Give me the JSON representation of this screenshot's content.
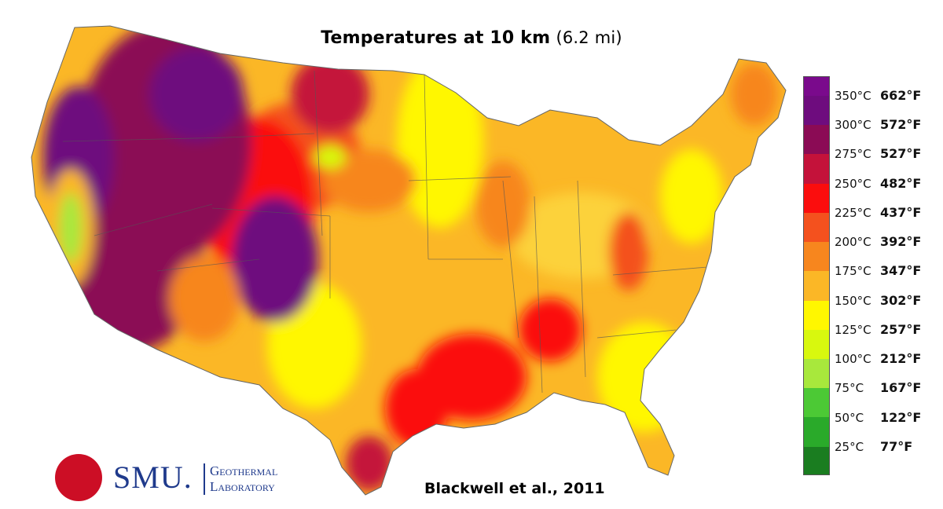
{
  "title": {
    "main": "Temperatures at 10 km",
    "sub": "(6.2 mi)"
  },
  "credit": "Blackwell et al., 2011",
  "logo": {
    "wordmark": "SMU.",
    "line1": "Geothermal",
    "line2": "Laboratory"
  },
  "legend": [
    {
      "c": "350°C",
      "f": "662°F",
      "color": "#6e0c7e"
    },
    {
      "c": "300°C",
      "f": "572°F",
      "color": "#8b0b55"
    },
    {
      "c": "275°C",
      "f": "527°F",
      "color": "#c4123a"
    },
    {
      "c": "250°C",
      "f": "482°F",
      "color": "#fb0d0d"
    },
    {
      "c": "225°C",
      "f": "437°F",
      "color": "#f4511e"
    },
    {
      "c": "200°C",
      "f": "392°F",
      "color": "#f7861e"
    },
    {
      "c": "175°C",
      "f": "347°F",
      "color": "#fbb726"
    },
    {
      "c": "150°C",
      "f": "302°F",
      "color": "#fff700"
    },
    {
      "c": "125°C",
      "f": "257°F",
      "color": "#d8f80e"
    },
    {
      "c": "100°C",
      "f": "212°F",
      "color": "#a8e83c"
    },
    {
      "c": "75°C",
      "f": "167°F",
      "color": "#4cc935"
    },
    {
      "c": "50°C",
      "f": "122°F",
      "color": "#2aaa2a"
    },
    {
      "c": "25°C",
      "f": "77°F",
      "color": "#1a7d20"
    }
  ],
  "top_color": "#7a0a8c"
}
